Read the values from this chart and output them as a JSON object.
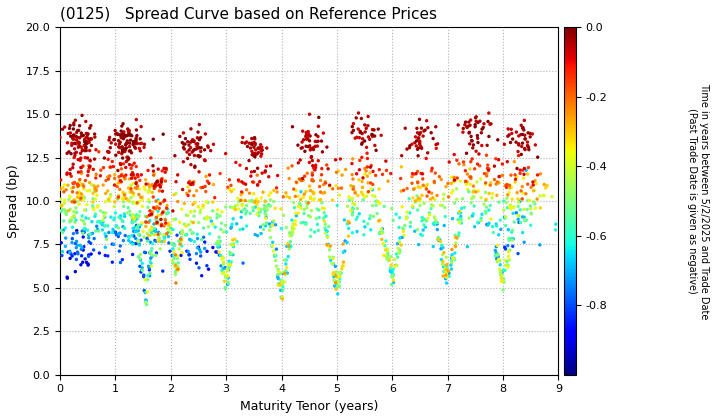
{
  "title": "(0125)   Spread Curve based on Reference Prices",
  "xlabel": "Maturity Tenor (years)",
  "ylabel": "Spread (bp)",
  "colorbar_label": "Time in years between 5/2/2025 and Trade Date\n(Past Trade Date is given as negative)",
  "xlim": [
    0,
    9
  ],
  "ylim": [
    0.0,
    20.0
  ],
  "xticks": [
    0,
    1,
    2,
    3,
    4,
    5,
    6,
    7,
    8,
    9
  ],
  "yticks": [
    0.0,
    2.5,
    5.0,
    7.5,
    10.0,
    12.5,
    15.0,
    17.5,
    20.0
  ],
  "color_vmin": -1.0,
  "color_vmax": 0.0,
  "background": "#ffffff",
  "dot_size": 6,
  "clusters": [
    {
      "x_center": 0.35,
      "x_width": 0.25,
      "y_high": 13.5,
      "y_low": 6.5,
      "n": 300,
      "t_high_max": -0.02,
      "t_low_min": -0.95
    },
    {
      "x_center": 1.2,
      "x_width": 0.35,
      "y_high": 13.5,
      "y_low": 7.5,
      "n": 350,
      "t_high_max": -0.02,
      "t_low_min": -0.85
    },
    {
      "x_center": 1.75,
      "x_width": 0.15,
      "y_high": 11.0,
      "y_low": 7.5,
      "n": 80,
      "t_high_max": -0.15,
      "t_low_min": -0.55
    },
    {
      "x_center": 2.4,
      "x_width": 0.35,
      "y_high": 13.0,
      "y_low": 6.5,
      "n": 200,
      "t_high_max": -0.02,
      "t_low_min": -0.88
    },
    {
      "x_center": 3.5,
      "x_width": 0.25,
      "y_high": 13.0,
      "y_low": 8.5,
      "n": 150,
      "t_high_max": -0.02,
      "t_low_min": -0.72
    },
    {
      "x_center": 4.5,
      "x_width": 0.25,
      "y_high": 13.5,
      "y_low": 8.5,
      "n": 150,
      "t_high_max": -0.02,
      "t_low_min": -0.65
    },
    {
      "x_center": 5.5,
      "x_width": 0.25,
      "y_high": 14.0,
      "y_low": 8.5,
      "n": 130,
      "t_high_max": -0.02,
      "t_low_min": -0.68
    },
    {
      "x_center": 6.5,
      "x_width": 0.25,
      "y_high": 13.5,
      "y_low": 8.0,
      "n": 130,
      "t_high_max": -0.02,
      "t_low_min": -0.7
    },
    {
      "x_center": 7.5,
      "x_width": 0.3,
      "y_high": 14.0,
      "y_low": 8.5,
      "n": 150,
      "t_high_max": -0.02,
      "t_low_min": -0.72
    },
    {
      "x_center": 8.3,
      "x_width": 0.3,
      "y_high": 13.5,
      "y_low": 7.5,
      "n": 150,
      "t_high_max": -0.02,
      "t_low_min": -0.85
    }
  ],
  "dips": [
    {
      "x_center": 1.55,
      "x_width": 0.12,
      "y_min": 4.5,
      "y_max": 8.5,
      "n": 60,
      "t_min": -0.85,
      "t_max": -0.35
    },
    {
      "x_center": 2.1,
      "x_width": 0.12,
      "y_min": 6.0,
      "y_max": 9.5,
      "n": 50,
      "t_min": -0.65,
      "t_max": -0.2
    },
    {
      "x_center": 3.0,
      "x_width": 0.15,
      "y_min": 5.5,
      "y_max": 8.5,
      "n": 70,
      "t_min": -0.8,
      "t_max": -0.3
    },
    {
      "x_center": 4.0,
      "x_width": 0.15,
      "y_min": 5.0,
      "y_max": 8.5,
      "n": 80,
      "t_min": -0.75,
      "t_max": -0.25
    },
    {
      "x_center": 5.0,
      "x_width": 0.15,
      "y_min": 5.0,
      "y_max": 8.5,
      "n": 70,
      "t_min": -0.72,
      "t_max": -0.25
    },
    {
      "x_center": 6.0,
      "x_width": 0.15,
      "y_min": 5.5,
      "y_max": 8.5,
      "n": 70,
      "t_min": -0.72,
      "t_max": -0.25
    },
    {
      "x_center": 7.0,
      "x_width": 0.15,
      "y_min": 5.5,
      "y_max": 8.5,
      "n": 70,
      "t_min": -0.72,
      "t_max": -0.25
    },
    {
      "x_center": 8.0,
      "x_width": 0.15,
      "y_min": 5.5,
      "y_max": 8.5,
      "n": 60,
      "t_min": -0.78,
      "t_max": -0.3
    }
  ]
}
